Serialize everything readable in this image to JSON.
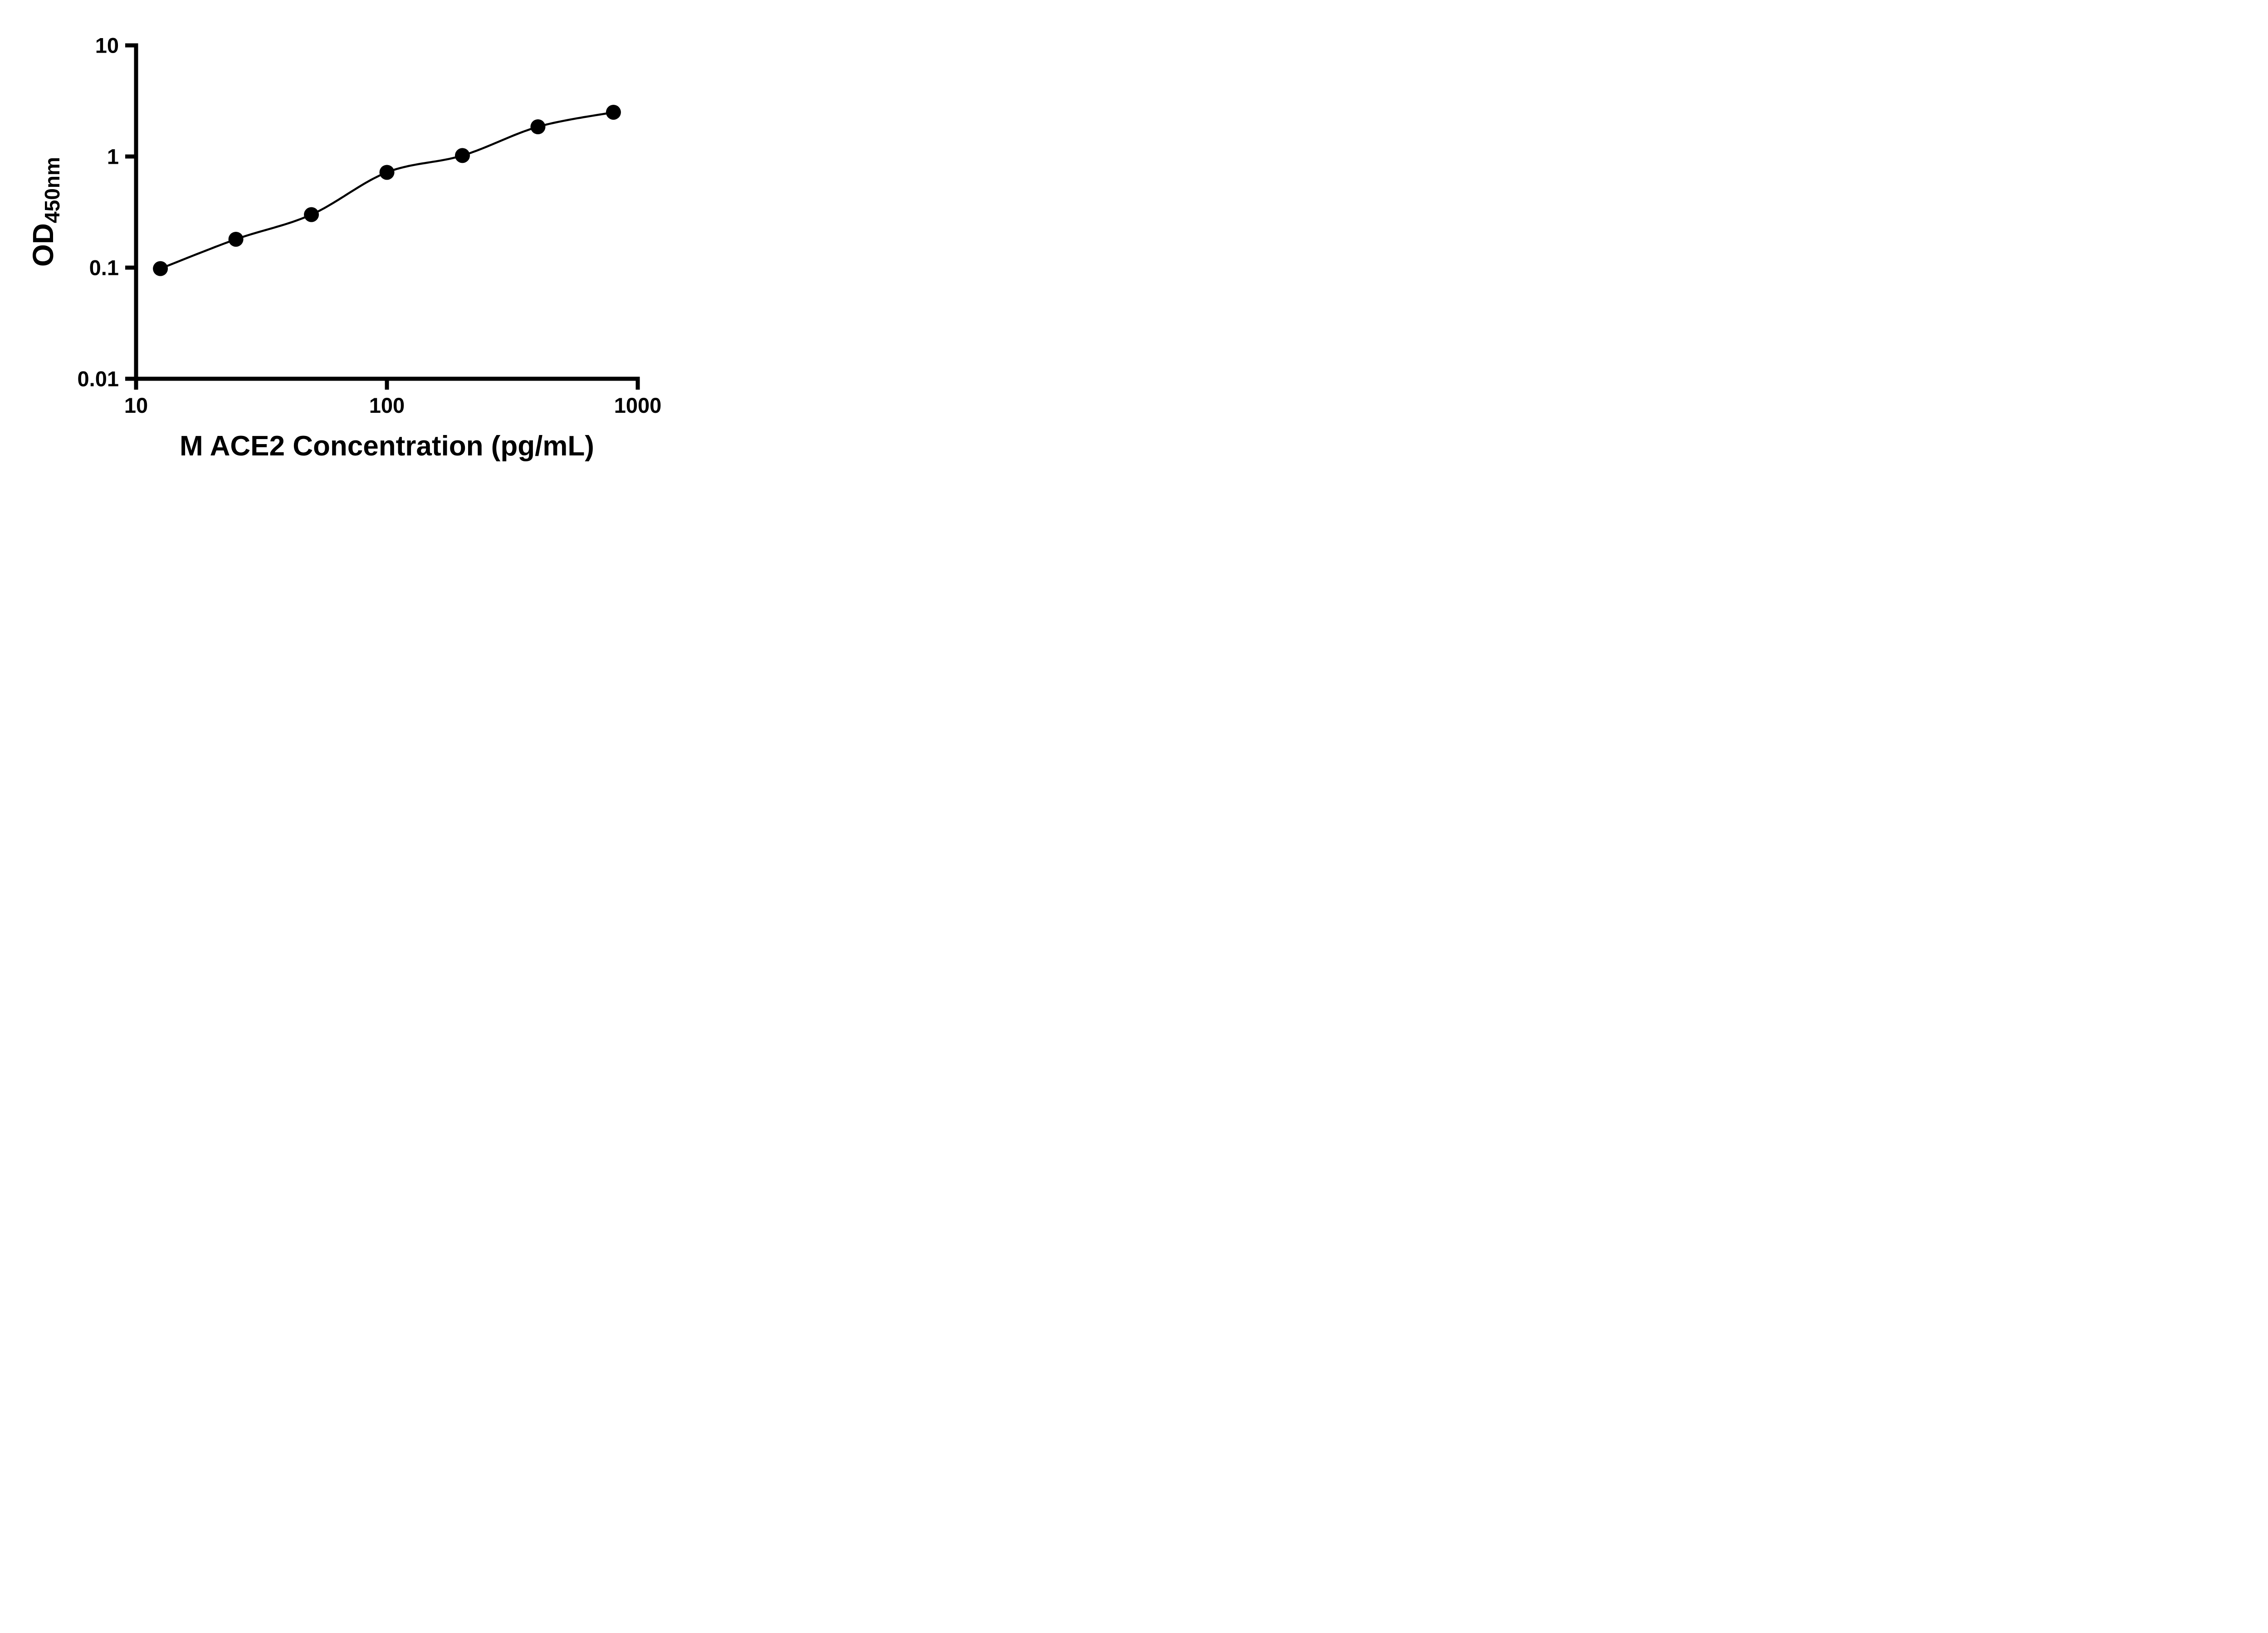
{
  "colors": {
    "foreground": "#000000",
    "background": "#ffffff"
  },
  "chart_data": {
    "type": "scatter",
    "title": "",
    "xlabel": "M ACE2 Concentration (pg/mL)",
    "ylabel": "OD450nm",
    "ylabel_main": "OD",
    "ylabel_sub": "450nm",
    "x_scale": "log",
    "y_scale": "log",
    "xlim": [
      10,
      1000
    ],
    "ylim": [
      0.01,
      10
    ],
    "x_ticks": [
      {
        "value": 10,
        "label": "10"
      },
      {
        "value": 100,
        "label": "100"
      },
      {
        "value": 1000,
        "label": "1000"
      }
    ],
    "y_ticks": [
      {
        "value": 0.01,
        "label": "0.01"
      },
      {
        "value": 0.1,
        "label": "0.1"
      },
      {
        "value": 1,
        "label": "1"
      },
      {
        "value": 10,
        "label": "10"
      }
    ],
    "grid": false,
    "legend": "none",
    "series": [
      {
        "marker": "circle",
        "marker_color": "#000000",
        "line_color": "#000000",
        "curve": true,
        "points": [
          {
            "x": 12.5,
            "y": 0.098
          },
          {
            "x": 25,
            "y": 0.18
          },
          {
            "x": 50,
            "y": 0.3
          },
          {
            "x": 100,
            "y": 0.72
          },
          {
            "x": 200,
            "y": 1.02
          },
          {
            "x": 400,
            "y": 1.85
          },
          {
            "x": 800,
            "y": 2.5
          }
        ]
      }
    ]
  }
}
